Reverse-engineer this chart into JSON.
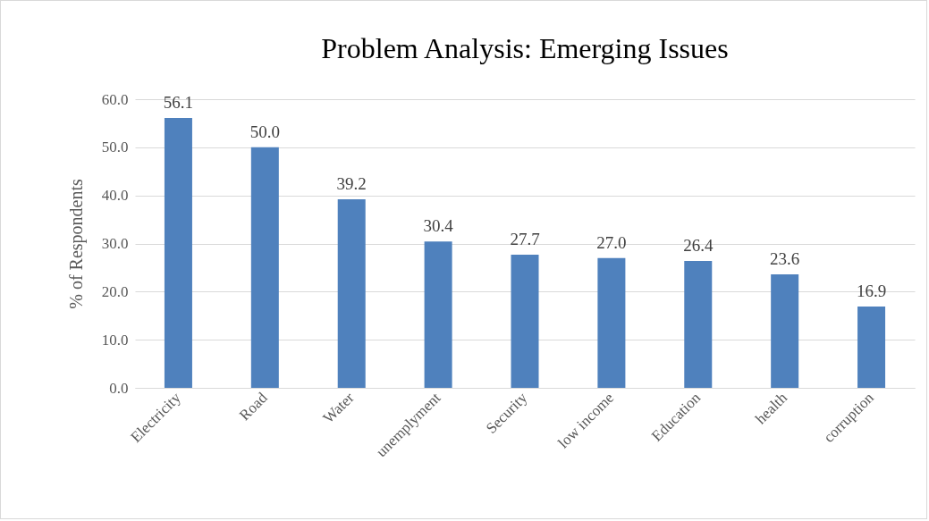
{
  "chart_data": {
    "type": "bar",
    "title": "Problem Analysis: Emerging Issues",
    "ylabel": "% of Respondents",
    "categories": [
      "Electricity",
      "Road",
      "Water",
      "unemplyment",
      "Security",
      "low income",
      "Education",
      "health",
      "corruption"
    ],
    "values": [
      56.1,
      50.0,
      39.2,
      30.4,
      27.7,
      27.0,
      26.4,
      23.6,
      16.9
    ],
    "value_labels": [
      "56.1",
      "50.0",
      "39.2",
      "30.4",
      "27.7",
      "27.0",
      "26.4",
      "23.6",
      "16.9"
    ],
    "color": "#4f81bd",
    "ylim": [
      0,
      60
    ],
    "yticks": [
      {
        "value": 0,
        "label": "0.0"
      },
      {
        "value": 10,
        "label": "10.0"
      },
      {
        "value": 20,
        "label": "20.0"
      },
      {
        "value": 30,
        "label": "30.0"
      },
      {
        "value": 40,
        "label": "40.0"
      },
      {
        "value": 50,
        "label": "50.0"
      },
      {
        "value": 60,
        "label": "60.0"
      }
    ],
    "grid": "y"
  }
}
